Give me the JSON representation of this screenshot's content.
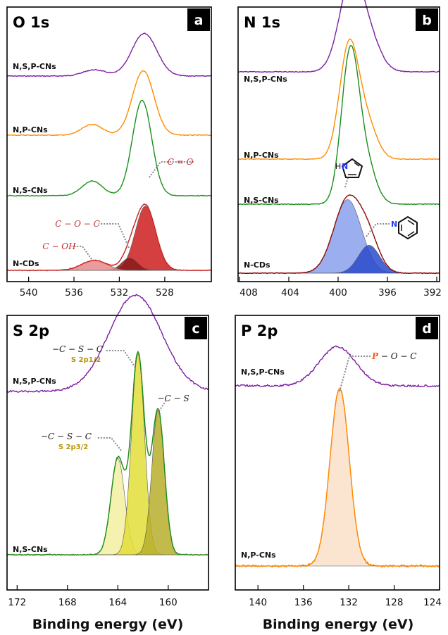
{
  "xlabel": "Binding energy (eV)",
  "chart_data": [
    {
      "type": "line",
      "panel": "a",
      "title": "O 1s",
      "xlim": [
        543,
        525
      ],
      "xticks": [
        540,
        536,
        532,
        528
      ],
      "series": [
        {
          "name": "N,S,P-CNs",
          "color": "#7b1fa2",
          "peaks": [
            {
              "center": 530.9,
              "height": 0.55,
              "width": 1.1
            },
            {
              "center": 535.3,
              "height": 0.08,
              "width": 1.0
            }
          ]
        },
        {
          "name": "N,P-CNs",
          "color": "#ff8c00",
          "peaks": [
            {
              "center": 531.0,
              "height": 0.83,
              "width": 0.95
            },
            {
              "center": 535.5,
              "height": 0.14,
              "width": 0.9
            }
          ]
        },
        {
          "name": "N,S-CNs",
          "color": "#1a8f1a",
          "peaks": [
            {
              "center": 531.1,
              "height": 1.23,
              "width": 0.85
            },
            {
              "center": 535.5,
              "height": 0.19,
              "width": 0.9
            }
          ]
        },
        {
          "name": "N-CDs",
          "color": "#c62828",
          "peaks": [
            {
              "center": 530.8,
              "height": 0.83,
              "width": 0.9
            },
            {
              "center": 532.2,
              "height": 0.16,
              "width": 0.7
            },
            {
              "center": 535.3,
              "height": 0.13,
              "width": 1.1
            }
          ]
        }
      ],
      "fits": [
        {
          "center": 530.8,
          "height": 0.83,
          "width": 0.9,
          "color": "#cc1f1f"
        },
        {
          "center": 532.2,
          "height": 0.16,
          "width": 0.7,
          "color": "#8b1a1a"
        },
        {
          "center": 535.3,
          "height": 0.13,
          "width": 1.1,
          "color": "#e88a8a"
        }
      ],
      "annotations": [
        "C = O",
        "C − O − C",
        "C − OH"
      ]
    },
    {
      "type": "line",
      "panel": "b",
      "title": "N 1s",
      "xlim": [
        408,
        392
      ],
      "xticks": [
        408,
        404,
        400,
        396,
        392
      ],
      "series": [
        {
          "name": "N,S,P-CNs",
          "color": "#7b1fa2",
          "peaks": [
            {
              "center": 399.0,
              "height": 0.72,
              "width": 0.95
            },
            {
              "center": 397.5,
              "height": 0.2,
              "width": 0.9
            }
          ]
        },
        {
          "name": "N,P-CNs",
          "color": "#ff8c00",
          "peaks": [
            {
              "center": 399.2,
              "height": 0.88,
              "width": 0.75
            },
            {
              "center": 397.8,
              "height": 0.28,
              "width": 0.8
            }
          ]
        },
        {
          "name": "N,S-CNs",
          "color": "#1a8f1a",
          "peaks": [
            {
              "center": 399.1,
              "height": 1.18,
              "width": 0.7
            },
            {
              "center": 397.8,
              "height": 0.3,
              "width": 0.75
            }
          ]
        },
        {
          "name": "N-CDs",
          "color": "#8b1010",
          "peaks": [
            {
              "center": 399.3,
              "height": 0.58,
              "width": 1.1
            },
            {
              "center": 397.6,
              "height": 0.22,
              "width": 0.85
            }
          ]
        }
      ],
      "fits": [
        {
          "center": 399.3,
          "height": 0.58,
          "width": 1.1,
          "color": "#8aa0ec"
        },
        {
          "center": 397.6,
          "height": 0.22,
          "width": 0.85,
          "color": "#2a4bcc"
        }
      ],
      "annotations": [
        "H",
        "N",
        "N"
      ]
    },
    {
      "type": "line",
      "panel": "c",
      "title": "S 2p",
      "xlim": [
        173,
        157
      ],
      "xticks": [
        172,
        168,
        164,
        160
      ],
      "series": [
        {
          "name": "N,S,P-CNs",
          "color": "#7b1fa2",
          "peaks": [
            {
              "center": 162.8,
              "height": 0.48,
              "width": 2.1
            }
          ]
        },
        {
          "name": "N,S-CNs",
          "color": "#1a8f1a",
          "peaks": [
            {
              "center": 162.6,
              "height": 1.0,
              "width": 0.52
            },
            {
              "center": 161.0,
              "height": 0.72,
              "width": 0.5
            },
            {
              "center": 164.2,
              "height": 0.48,
              "width": 0.55
            }
          ]
        }
      ],
      "fits": [
        {
          "center": 164.2,
          "height": 0.48,
          "width": 0.55,
          "color": "#f2f0a0"
        },
        {
          "center": 162.6,
          "height": 1.0,
          "width": 0.52,
          "color": "#e3de3a"
        },
        {
          "center": 161.0,
          "height": 0.72,
          "width": 0.5,
          "color": "#b7ae2a"
        }
      ],
      "annotations": [
        "−C − S − C",
        "S 2p1/2",
        "−C − S",
        "−C − S − C",
        "S 2p3/2"
      ]
    },
    {
      "type": "line",
      "panel": "d",
      "title": "P 2p",
      "xlim": [
        142,
        124
      ],
      "xticks": [
        140,
        136,
        132,
        128,
        124
      ],
      "series": [
        {
          "name": "N,S,P-CNs",
          "color": "#7b1fa2",
          "peaks": [
            {
              "center": 133.0,
              "height": 0.22,
              "width": 1.6
            }
          ]
        },
        {
          "name": "N,P-CNs",
          "color": "#ff8c00",
          "peaks": [
            {
              "center": 132.8,
              "height": 1.0,
              "width": 0.85
            }
          ]
        }
      ],
      "fits": [
        {
          "center": 132.8,
          "height": 1.0,
          "width": 0.85,
          "color": "#fbe1c8"
        }
      ],
      "annotations": [
        "P",
        " − O − C"
      ]
    }
  ],
  "panels": [
    {
      "tag": "a",
      "title": "O 1s",
      "labels": [
        "N,S,P-CNs",
        "N,P-CNs",
        "N,S-CNs",
        "N-CDs"
      ],
      "ticks": [
        "540",
        "536",
        "532",
        "528"
      ],
      "ann": {
        "co": "C = O",
        "coc": "C − O − C",
        "coh": "C − OH"
      }
    },
    {
      "tag": "b",
      "title": "N 1s",
      "labels": [
        "N,S,P-CNs",
        "N,P-CNs",
        "N,S-CNs",
        "N-CDs"
      ],
      "ticks": [
        "408",
        "404",
        "400",
        "396",
        "392"
      ],
      "ann": {
        "h": "H",
        "n1": "N",
        "n2": "N"
      }
    },
    {
      "tag": "c",
      "title": "S 2p",
      "labels": [
        "N,S,P-CNs",
        "N,S-CNs"
      ],
      "ticks": [
        "172",
        "168",
        "164",
        "160"
      ],
      "ann": {
        "csc1": "−C − S − C",
        "sub1": "S 2p1/2",
        "cs": "−C − S",
        "csc2": "−C − S − C",
        "sub2": "S 2p3/2"
      }
    },
    {
      "tag": "d",
      "title": "P 2p",
      "labels": [
        "N,S,P-CNs",
        "N,P-CNs"
      ],
      "ticks": [
        "140",
        "136",
        "132",
        "128",
        "124"
      ],
      "ann": {
        "p": "P",
        "poc": " − O − C"
      }
    }
  ]
}
